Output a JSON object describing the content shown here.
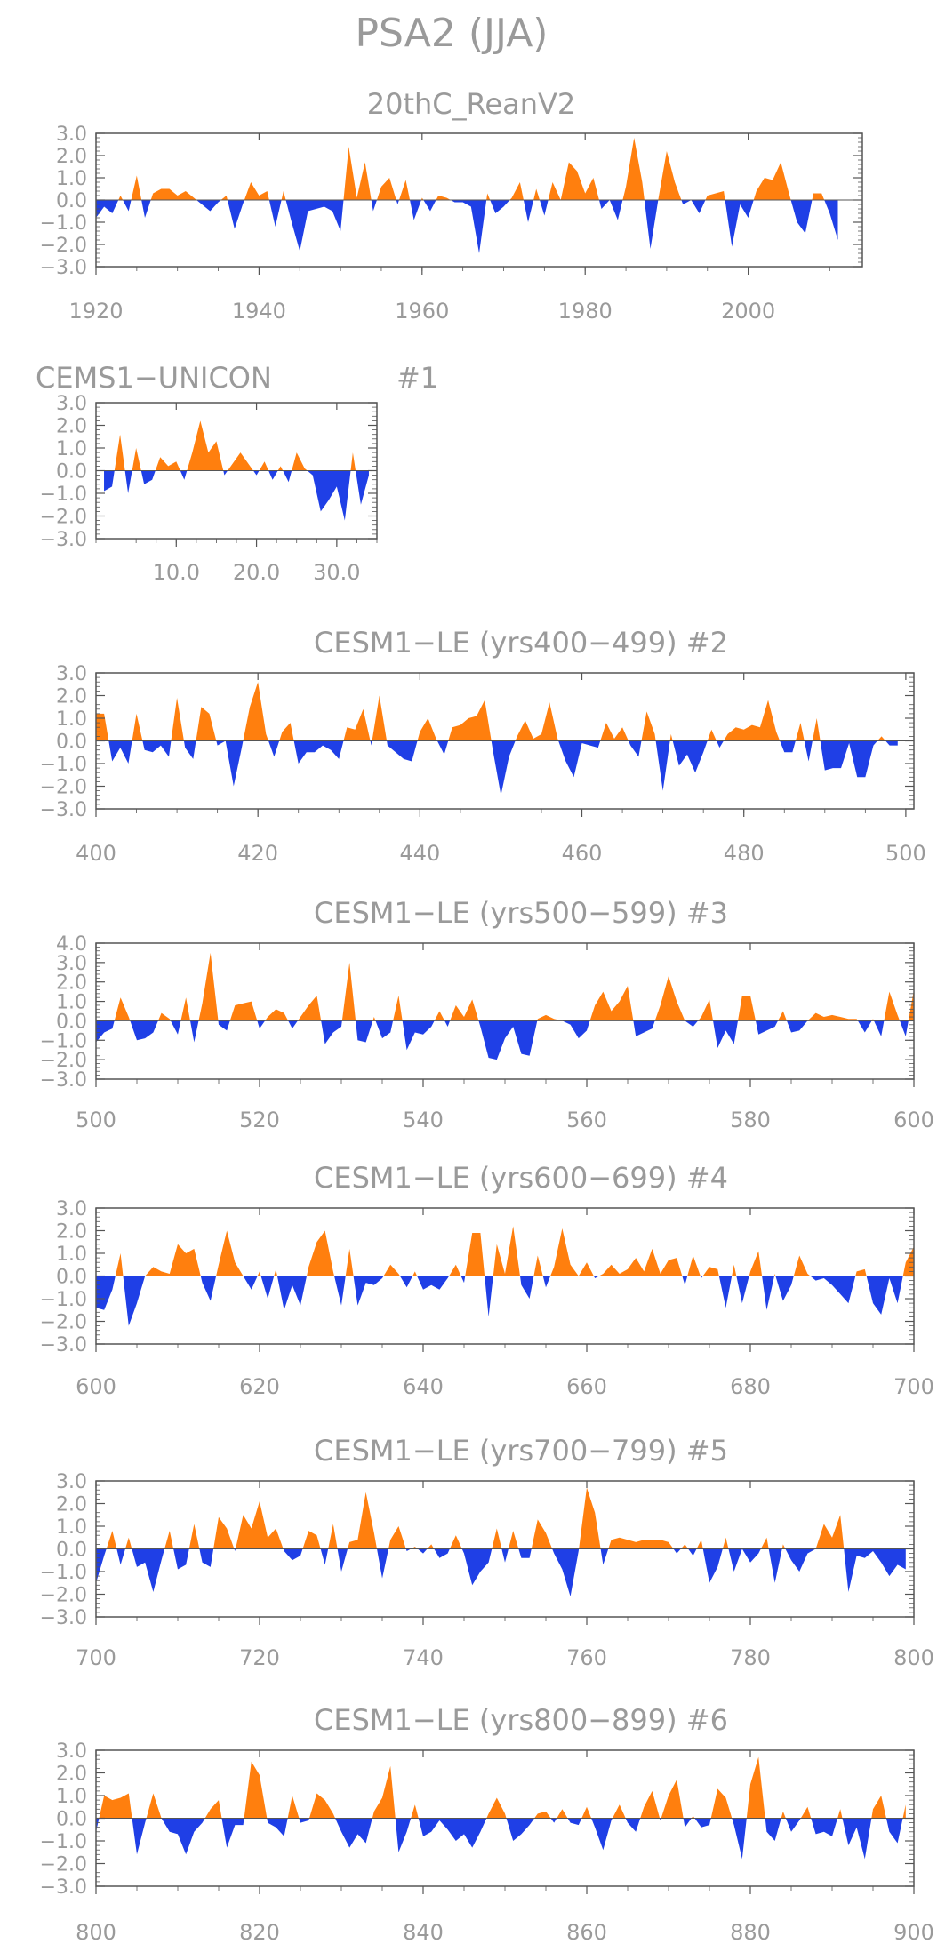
{
  "figure_title": "PSA2 (JJA)",
  "colors": {
    "positive": "#ff7f0e",
    "negative": "#1f3fe6",
    "frame": "#555555",
    "text": "#9a9a9a"
  },
  "chart_data": [
    {
      "type": "area",
      "title": "20thC_ReanV2",
      "title_right": "",
      "x": [
        1920,
        1921,
        1922,
        1923,
        1924,
        1925,
        1926,
        1927,
        1928,
        1929,
        1930,
        1931,
        1932,
        1933,
        1934,
        1935,
        1936,
        1937,
        1938,
        1939,
        1940,
        1941,
        1942,
        1943,
        1944,
        1945,
        1946,
        1947,
        1948,
        1949,
        1950,
        1951,
        1952,
        1953,
        1954,
        1955,
        1956,
        1957,
        1958,
        1959,
        1960,
        1961,
        1962,
        1963,
        1964,
        1965,
        1966,
        1967,
        1968,
        1969,
        1970,
        1971,
        1972,
        1973,
        1974,
        1975,
        1976,
        1977,
        1978,
        1979,
        1980,
        1981,
        1982,
        1983,
        1984,
        1985,
        1986,
        1987,
        1988,
        1989,
        1990,
        1991,
        1992,
        1993,
        1994,
        1995,
        1996,
        1997,
        1998,
        1999,
        2000,
        2001,
        2002,
        2003,
        2004,
        2005,
        2006,
        2007,
        2008,
        2009,
        2010,
        2011
      ],
      "values": [
        -0.8,
        -0.3,
        -0.6,
        0.2,
        -0.5,
        1.1,
        -0.8,
        0.3,
        0.5,
        0.5,
        0.2,
        0.4,
        0.1,
        -0.2,
        -0.5,
        -0.1,
        0.2,
        -1.3,
        -0.2,
        0.8,
        0.2,
        0.4,
        -1.2,
        0.4,
        -1.0,
        -2.3,
        -0.5,
        -0.4,
        -0.3,
        -0.5,
        -1.4,
        2.4,
        0.1,
        1.7,
        -0.5,
        0.6,
        1.0,
        -0.2,
        0.9,
        -0.9,
        0.1,
        -0.5,
        0.2,
        0.1,
        -0.1,
        -0.1,
        -0.3,
        -2.4,
        0.3,
        -0.6,
        -0.3,
        0.1,
        0.8,
        -1.0,
        0.5,
        -0.7,
        0.8,
        0.0,
        1.7,
        1.3,
        0.3,
        1.0,
        -0.4,
        0.0,
        -0.9,
        0.6,
        2.8,
        0.8,
        -2.2,
        0.1,
        2.2,
        0.8,
        -0.2,
        0.0,
        -0.6,
        0.2,
        0.3,
        0.4,
        -2.1,
        -0.2,
        -0.8,
        0.4,
        1.0,
        0.9,
        1.7,
        0.3,
        -1.0,
        -1.5,
        0.3,
        0.3,
        -0.6,
        -1.8
      ],
      "xlim": [
        1920,
        2014
      ],
      "ylim": [
        -3.0,
        3.0
      ],
      "xticks": [
        1920,
        1940,
        1960,
        1980,
        2000
      ],
      "xtick_labels": [
        "1920",
        "1940",
        "1960",
        "1980",
        "2000"
      ],
      "yticks": [
        3.0,
        2.0,
        1.0,
        0.0,
        -1.0,
        -2.0,
        -3.0
      ],
      "ytick_labels": [
        "3.0",
        "2.0",
        "1.0",
        "0.0",
        "−1.0",
        "−2.0",
        "−3.0"
      ]
    },
    {
      "type": "area",
      "title": "CEMS1−UNICON",
      "title_right": "#1",
      "x": [
        1,
        2,
        3,
        4,
        5,
        6,
        7,
        8,
        9,
        10,
        11,
        12,
        13,
        14,
        15,
        16,
        17,
        18,
        19,
        20,
        21,
        22,
        23,
        24,
        25,
        26,
        27,
        28,
        29,
        30,
        31,
        32,
        33,
        34
      ],
      "values": [
        -0.9,
        -0.7,
        1.6,
        -1.0,
        1.0,
        -0.6,
        -0.4,
        0.6,
        0.2,
        0.4,
        -0.4,
        0.8,
        2.2,
        0.8,
        1.3,
        -0.2,
        0.3,
        0.8,
        0.3,
        -0.2,
        0.4,
        -0.4,
        0.2,
        -0.5,
        0.8,
        0.1,
        -0.2,
        -1.8,
        -1.3,
        -0.7,
        -2.2,
        0.8,
        -1.5,
        -0.2
      ],
      "xlim": [
        0,
        35
      ],
      "ylim": [
        -3.0,
        3.0
      ],
      "xticks": [
        10,
        20,
        30
      ],
      "xtick_labels": [
        "10.0",
        "20.0",
        "30.0"
      ],
      "yticks": [
        3.0,
        2.0,
        1.0,
        0.0,
        -1.0,
        -2.0,
        -3.0
      ],
      "ytick_labels": [
        "3.0",
        "2.0",
        "1.0",
        "0.0",
        "−1.0",
        "−2.0",
        "−3.0"
      ]
    },
    {
      "type": "area",
      "title": "CESM1−LE (yrs400−499) #2",
      "title_right": "",
      "x_start": 400,
      "values": [
        1.2,
        1.2,
        -0.9,
        -0.3,
        -1.0,
        1.2,
        -0.4,
        -0.5,
        -0.2,
        -0.7,
        1.9,
        -0.3,
        -0.8,
        1.5,
        1.2,
        -0.2,
        0.0,
        -2.0,
        -0.3,
        1.5,
        2.6,
        0.3,
        -0.7,
        0.4,
        0.8,
        -1.0,
        -0.5,
        -0.5,
        -0.2,
        -0.4,
        -0.8,
        0.6,
        0.5,
        1.4,
        -0.2,
        2.0,
        -0.2,
        -0.5,
        -0.8,
        -0.9,
        0.4,
        1.0,
        0.1,
        -0.6,
        0.6,
        0.7,
        1.0,
        1.1,
        1.8,
        -0.4,
        -2.4,
        -0.7,
        0.2,
        0.9,
        0.1,
        0.3,
        1.7,
        0.1,
        -0.9,
        -1.6,
        -0.1,
        -0.2,
        -0.3,
        0.8,
        0.1,
        0.6,
        -0.2,
        -0.7,
        1.3,
        0.3,
        -2.2,
        0.3,
        -1.1,
        -0.6,
        -1.4,
        -0.5,
        0.5,
        -0.3,
        0.3,
        0.6,
        0.5,
        0.7,
        0.6,
        1.8,
        0.4,
        -0.5,
        -0.5,
        0.8,
        -0.9,
        1.0,
        -1.3,
        -1.2,
        -1.2,
        -0.1,
        -1.6,
        -1.6,
        -0.2,
        0.2,
        -0.2,
        -0.2
      ],
      "xlim": [
        400,
        501
      ],
      "ylim": [
        -3.0,
        3.0
      ],
      "xticks": [
        400,
        420,
        440,
        460,
        480,
        500
      ],
      "xtick_labels": [
        "400",
        "420",
        "440",
        "460",
        "480",
        "500"
      ],
      "yticks": [
        3.0,
        2.0,
        1.0,
        0.0,
        -1.0,
        -2.0,
        -3.0
      ],
      "ytick_labels": [
        "3.0",
        "2.0",
        "1.0",
        "0.0",
        "−1.0",
        "−2.0",
        "−3.0"
      ]
    },
    {
      "type": "area",
      "title": "CESM1−LE (yrs500−599) #3",
      "title_right": "",
      "x_start": 500,
      "values": [
        -1.1,
        -0.6,
        -0.4,
        1.2,
        0.2,
        -1.0,
        -0.9,
        -0.6,
        0.4,
        0.1,
        -0.7,
        1.2,
        -1.1,
        0.9,
        3.5,
        -0.2,
        -0.5,
        0.8,
        0.9,
        1.0,
        -0.4,
        0.2,
        0.6,
        0.4,
        -0.4,
        0.2,
        0.8,
        1.3,
        -1.2,
        -0.6,
        -0.3,
        3.0,
        -1.0,
        -1.1,
        0.2,
        -0.9,
        -0.6,
        1.3,
        -1.5,
        -0.6,
        -0.7,
        -0.3,
        0.5,
        -0.3,
        0.8,
        0.2,
        1.1,
        -0.3,
        -1.9,
        -2.0,
        -0.9,
        -0.3,
        -1.7,
        -1.8,
        0.1,
        0.3,
        0.1,
        0.0,
        -0.2,
        -0.9,
        -0.5,
        0.8,
        1.5,
        0.5,
        1.0,
        1.8,
        -0.8,
        -0.6,
        -0.4,
        0.8,
        2.3,
        1.0,
        0.0,
        -0.3,
        0.2,
        1.1,
        -1.4,
        -0.5,
        -1.2,
        1.3,
        1.3,
        -0.7,
        -0.5,
        -0.3,
        0.5,
        -0.6,
        -0.5,
        0.0,
        0.4,
        0.2,
        0.3,
        0.2,
        0.1,
        0.1,
        -0.6,
        0.1,
        -0.8,
        1.5,
        0.3,
        -0.8,
        1.6
      ],
      "xlim": [
        500,
        600
      ],
      "ylim": [
        -3.0,
        4.0
      ],
      "xticks": [
        500,
        520,
        540,
        560,
        580,
        600
      ],
      "xtick_labels": [
        "500",
        "520",
        "540",
        "560",
        "580",
        "600"
      ],
      "yticks": [
        4.0,
        3.0,
        2.0,
        1.0,
        0.0,
        -1.0,
        -2.0,
        -3.0
      ],
      "ytick_labels": [
        "4.0",
        "3.0",
        "2.0",
        "1.0",
        "0.0",
        "−1.0",
        "−2.0",
        "−3.0"
      ]
    },
    {
      "type": "area",
      "title": "CESM1−LE (yrs600−699) #4",
      "title_right": "",
      "x_start": 600,
      "values": [
        -1.4,
        -1.5,
        -0.6,
        1.0,
        -2.2,
        -1.2,
        0.0,
        0.4,
        0.2,
        0.1,
        1.4,
        1.0,
        1.2,
        -0.3,
        -1.1,
        0.5,
        2.0,
        0.6,
        0.0,
        -0.6,
        0.2,
        -1.0,
        0.3,
        -1.5,
        -0.4,
        -1.3,
        0.4,
        1.5,
        2.0,
        0.2,
        -1.3,
        1.2,
        -1.3,
        -0.3,
        -0.4,
        -0.1,
        0.5,
        0.1,
        -0.5,
        0.2,
        -0.6,
        -0.4,
        -0.6,
        -0.1,
        0.5,
        -0.3,
        1.9,
        1.9,
        -1.8,
        1.4,
        0.1,
        2.2,
        -0.4,
        -1.0,
        0.9,
        -0.5,
        0.4,
        2.1,
        0.5,
        0.0,
        0.6,
        -0.1,
        0.1,
        0.5,
        0.1,
        0.3,
        0.8,
        0.2,
        1.2,
        0.1,
        0.7,
        0.8,
        -0.4,
        0.9,
        -0.1,
        0.4,
        0.3,
        -1.4,
        0.5,
        -1.2,
        0.2,
        1.1,
        -1.5,
        0.1,
        -1.1,
        -0.4,
        0.9,
        0.1,
        -0.2,
        -0.1,
        -0.4,
        -0.8,
        -1.2,
        0.2,
        0.3,
        -1.2,
        -1.7,
        -0.1,
        -1.2,
        0.6,
        1.3
      ],
      "xlim": [
        600,
        700
      ],
      "ylim": [
        -3.0,
        3.0
      ],
      "xticks": [
        600,
        620,
        640,
        660,
        680,
        700
      ],
      "xtick_labels": [
        "600",
        "620",
        "640",
        "660",
        "680",
        "700"
      ],
      "yticks": [
        3.0,
        2.0,
        1.0,
        0.0,
        -1.0,
        -2.0,
        -3.0
      ],
      "ytick_labels": [
        "3.0",
        "2.0",
        "1.0",
        "0.0",
        "−1.0",
        "−2.0",
        "−3.0"
      ]
    },
    {
      "type": "area",
      "title": "CESM1−LE (yrs700−799) #5",
      "title_right": "",
      "x_start": 700,
      "values": [
        -1.5,
        -0.3,
        0.8,
        -0.7,
        0.5,
        -0.8,
        -0.6,
        -1.9,
        -0.5,
        0.8,
        -0.9,
        -0.7,
        1.1,
        -0.6,
        -0.8,
        1.4,
        0.9,
        -0.1,
        1.5,
        0.9,
        2.1,
        0.5,
        0.9,
        -0.1,
        -0.5,
        -0.3,
        0.8,
        0.6,
        -0.7,
        1.1,
        -1.0,
        0.3,
        0.4,
        2.5,
        0.7,
        -1.3,
        0.4,
        1.0,
        -0.1,
        0.1,
        -0.2,
        0.2,
        -0.4,
        -0.2,
        0.6,
        -0.2,
        -1.6,
        -1.0,
        -0.6,
        0.9,
        -0.6,
        0.8,
        -0.4,
        -0.4,
        1.3,
        0.7,
        -0.2,
        -0.9,
        -2.1,
        -0.1,
        2.7,
        1.6,
        -0.7,
        0.4,
        0.5,
        0.4,
        0.3,
        0.4,
        0.4,
        0.4,
        0.3,
        -0.2,
        0.2,
        -0.3,
        0.4,
        -1.5,
        -0.8,
        0.5,
        -1.0,
        0.0,
        -0.6,
        -0.2,
        0.5,
        -1.5,
        0.2,
        -0.5,
        -1.0,
        -0.2,
        0.0,
        1.1,
        0.5,
        1.5,
        -1.9,
        -0.3,
        -0.4,
        -0.1,
        -0.6,
        -1.2,
        -0.7,
        -0.9
      ],
      "xlim": [
        700,
        800
      ],
      "ylim": [
        -3.0,
        3.0
      ],
      "xticks": [
        700,
        720,
        740,
        760,
        780,
        800
      ],
      "xtick_labels": [
        "700",
        "720",
        "740",
        "760",
        "780",
        "800"
      ],
      "yticks": [
        3.0,
        2.0,
        1.0,
        0.0,
        -1.0,
        -2.0,
        -3.0
      ],
      "ytick_labels": [
        "3.0",
        "2.0",
        "1.0",
        "0.0",
        "−1.0",
        "−2.0",
        "−3.0"
      ]
    },
    {
      "type": "area",
      "title": "CESM1−LE (yrs800−899) #6",
      "title_right": "",
      "x_start": 800,
      "values": [
        -0.6,
        1.0,
        0.8,
        0.9,
        1.1,
        -1.6,
        -0.2,
        1.1,
        0.0,
        -0.6,
        -0.7,
        -1.6,
        -0.6,
        -0.2,
        0.4,
        0.8,
        -1.3,
        -0.3,
        -0.3,
        2.5,
        1.9,
        -0.2,
        -0.4,
        -0.8,
        1.0,
        -0.2,
        -0.1,
        1.1,
        0.8,
        0.2,
        -0.6,
        -1.3,
        -0.7,
        -1.1,
        0.3,
        0.9,
        2.3,
        -1.5,
        -0.6,
        0.6,
        -0.8,
        -0.6,
        -0.1,
        -0.5,
        -1.0,
        -0.7,
        -1.3,
        -0.6,
        0.2,
        0.9,
        0.2,
        -1.0,
        -0.7,
        -0.3,
        0.2,
        0.3,
        -0.2,
        0.4,
        -0.2,
        -0.3,
        0.5,
        -0.4,
        -1.4,
        -0.1,
        0.6,
        -0.2,
        -0.6,
        0.5,
        1.2,
        -0.1,
        1.0,
        1.7,
        -0.4,
        0.1,
        -0.4,
        -0.3,
        1.3,
        0.9,
        -0.3,
        -1.8,
        1.5,
        2.7,
        -0.6,
        -1.0,
        0.3,
        -0.6,
        -0.1,
        0.5,
        -0.7,
        -0.6,
        -0.8,
        0.4,
        -1.2,
        -0.4,
        -1.8,
        0.4,
        1.0,
        -0.6,
        -1.1,
        0.6
      ],
      "xlim": [
        800,
        900
      ],
      "ylim": [
        -3.0,
        3.0
      ],
      "xticks": [
        800,
        820,
        840,
        860,
        880,
        900
      ],
      "xtick_labels": [
        "800",
        "820",
        "840",
        "860",
        "880",
        "900"
      ],
      "yticks": [
        3.0,
        2.0,
        1.0,
        0.0,
        -1.0,
        -2.0,
        -3.0
      ],
      "ytick_labels": [
        "3.0",
        "2.0",
        "1.0",
        "0.0",
        "−1.0",
        "−2.0",
        "−3.0"
      ]
    }
  ]
}
